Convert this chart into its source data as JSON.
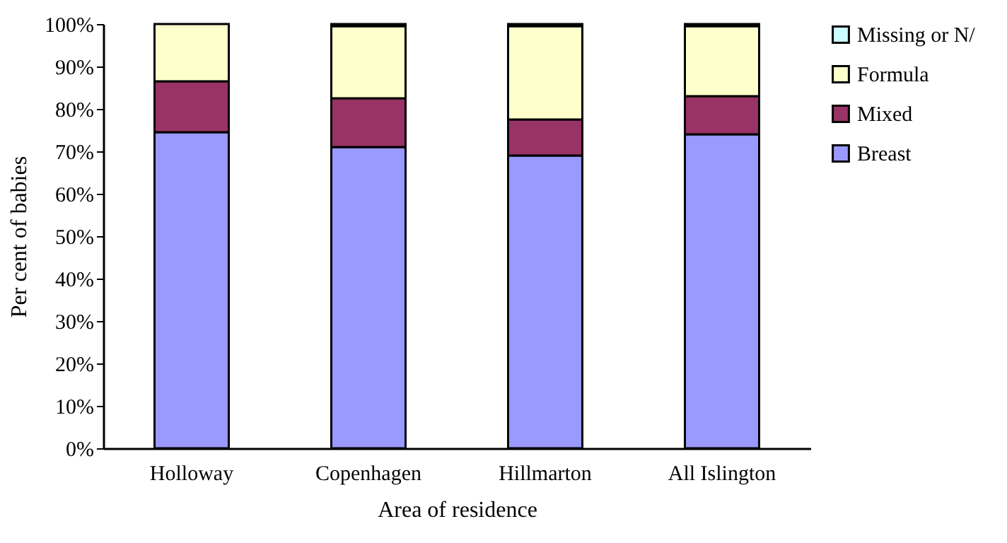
{
  "chart_data": {
    "type": "bar",
    "stacked": true,
    "xlabel": "Area of residence",
    "ylabel": "Per cent of babies",
    "categories": [
      "Holloway",
      "Copenhagen",
      "Hillmarton",
      "All Islington"
    ],
    "series": [
      {
        "name": "Breast",
        "color": "#9999ff",
        "values": [
          74.5,
          71,
          69,
          74
        ]
      },
      {
        "name": "Mixed",
        "color": "#993366",
        "values": [
          12,
          11.5,
          8.5,
          9
        ]
      },
      {
        "name": "Formula",
        "color": "#ffffcc",
        "values": [
          13.5,
          17,
          22,
          16.5
        ]
      },
      {
        "name": "Missing or N/",
        "color": "#ccffff",
        "values": [
          null,
          0.5,
          0.5,
          0.5
        ]
      }
    ],
    "ylim": [
      0,
      100
    ],
    "yticks": [
      {
        "value": 0,
        "label": "0%"
      },
      {
        "value": 10,
        "label": "10%"
      },
      {
        "value": 20,
        "label": "20%"
      },
      {
        "value": 30,
        "label": "30%"
      },
      {
        "value": 40,
        "label": "40%"
      },
      {
        "value": 50,
        "label": "50%"
      },
      {
        "value": 60,
        "label": "60%"
      },
      {
        "value": 70,
        "label": "70%"
      },
      {
        "value": 80,
        "label": "80%"
      },
      {
        "value": 90,
        "label": "90%"
      },
      {
        "value": 100,
        "label": "100%"
      }
    ],
    "legend": "right",
    "grid": false
  }
}
